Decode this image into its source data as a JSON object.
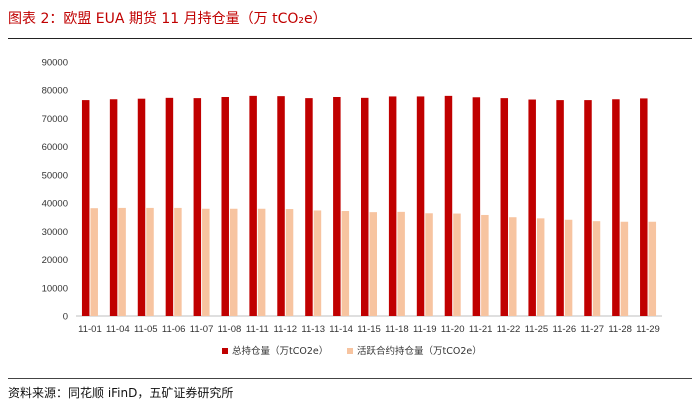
{
  "title": "图表 2：欧盟 EUA 期货 11 月持仓量（万 tCO₂e）",
  "source": "资料来源：同花顺 iFinD，五矿证券研究所",
  "colors": {
    "title": "#c00000",
    "series1": "#c00000",
    "series2": "#f7c4a0"
  },
  "chart_data": {
    "type": "bar",
    "categories": [
      "11-01",
      "11-04",
      "11-05",
      "11-06",
      "11-07",
      "11-08",
      "11-11",
      "11-12",
      "11-13",
      "11-14",
      "11-15",
      "11-18",
      "11-19",
      "11-20",
      "11-21",
      "11-22",
      "11-25",
      "11-26",
      "11-27",
      "11-28",
      "11-29"
    ],
    "series": [
      {
        "name": "总持仓量（万tCO2e）",
        "values": [
          76500,
          76800,
          77000,
          77300,
          77200,
          77600,
          78000,
          77900,
          77200,
          77600,
          77300,
          77800,
          77800,
          78000,
          77500,
          77200,
          76700,
          76500,
          76500,
          76800,
          77100
        ]
      },
      {
        "name": "活跃合约持仓量（万tCO2e）",
        "values": [
          38200,
          38300,
          38300,
          38300,
          38000,
          38000,
          38000,
          37900,
          37400,
          37200,
          36800,
          36900,
          36400,
          36300,
          35800,
          35000,
          34600,
          34100,
          33600,
          33400,
          33400
        ]
      }
    ],
    "yticks": [
      0,
      10000,
      20000,
      30000,
      40000,
      50000,
      60000,
      70000,
      80000,
      90000
    ],
    "ylim": [
      0,
      90000
    ],
    "grid": false,
    "legend": "bottom-center"
  }
}
